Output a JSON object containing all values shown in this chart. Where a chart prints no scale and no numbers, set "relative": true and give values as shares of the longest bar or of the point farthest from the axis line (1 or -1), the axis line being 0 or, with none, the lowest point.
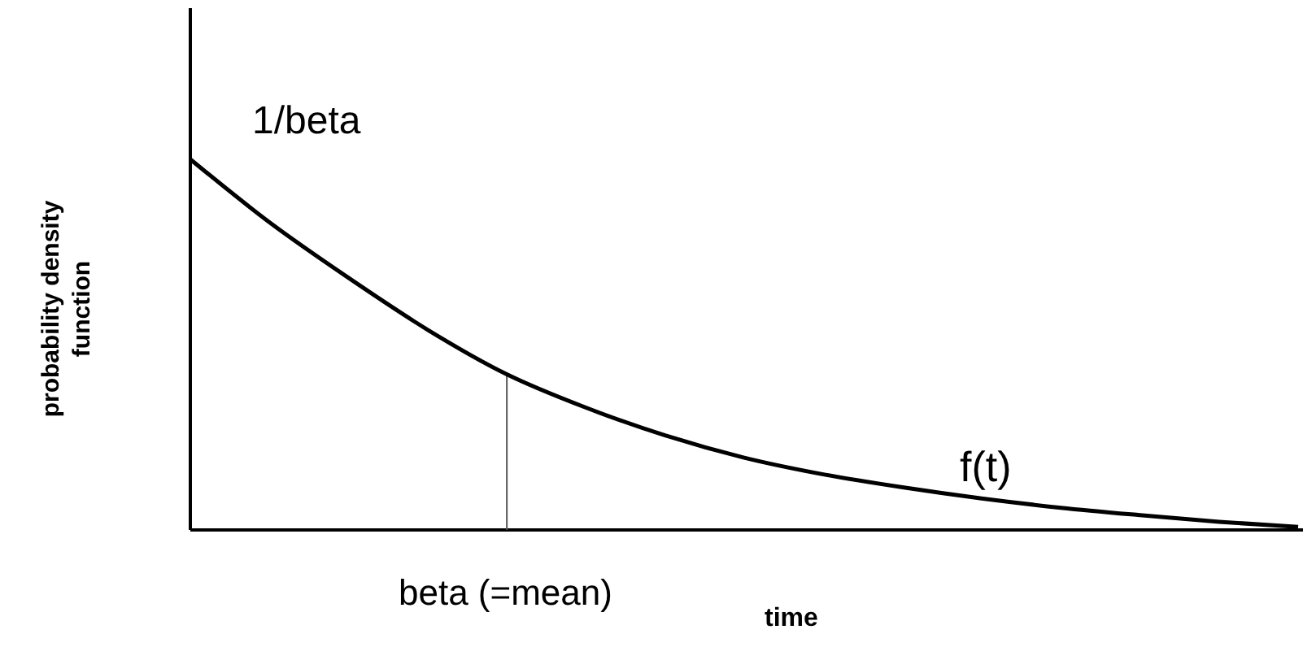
{
  "chart_data": {
    "type": "line",
    "relative": true,
    "xlabel": "time",
    "ylabel": "probability density function",
    "color": "#000000",
    "categories": [
      null,
      null,
      null,
      null,
      null,
      null,
      null,
      null,
      null,
      null,
      null,
      null,
      null,
      null,
      null
    ],
    "values": [
      1.0,
      0.83,
      0.68,
      0.54,
      0.42,
      0.33,
      0.255,
      0.195,
      0.15,
      0.115,
      0.085,
      0.06,
      0.04,
      0.022,
      0.008
    ],
    "annotations": [
      "1/beta",
      "f(t)",
      "beta (=mean)"
    ],
    "marker": "none",
    "line_style": "solid"
  }
}
